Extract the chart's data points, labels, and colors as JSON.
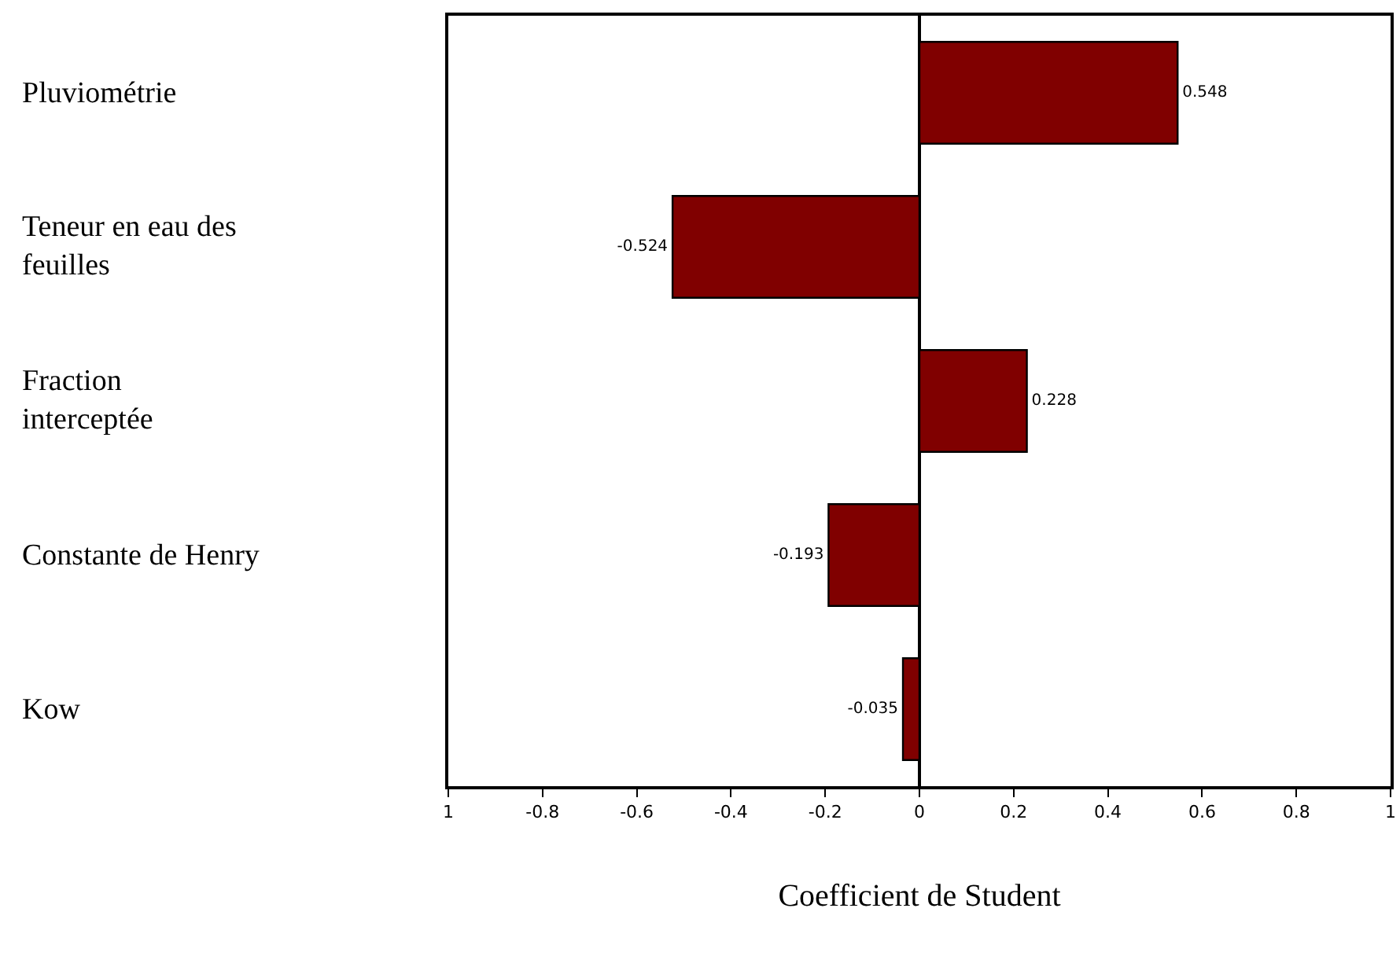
{
  "chart_data": {
    "type": "bar",
    "orientation": "horizontal",
    "xlabel": "Coefficient de Student",
    "categories": [
      "Pluviométrie",
      "Teneur en eau des feuilles",
      "Fraction interceptée",
      "Constante de Henry",
      "Kow"
    ],
    "values": [
      0.548,
      -0.524,
      0.228,
      -0.193,
      -0.035
    ],
    "value_labels": [
      "0.548",
      "-0.524",
      "0.228",
      "-0.193",
      "-0.035"
    ],
    "color": "#800000",
    "xlim": [
      -1,
      1
    ],
    "xticks": [
      {
        "value": -1,
        "label": "1"
      },
      -0.8,
      -0.6,
      -0.4,
      -0.2,
      0,
      0.2,
      0.4,
      0.6,
      0.8,
      {
        "value": 1,
        "label": "1"
      }
    ],
    "legend": false
  }
}
